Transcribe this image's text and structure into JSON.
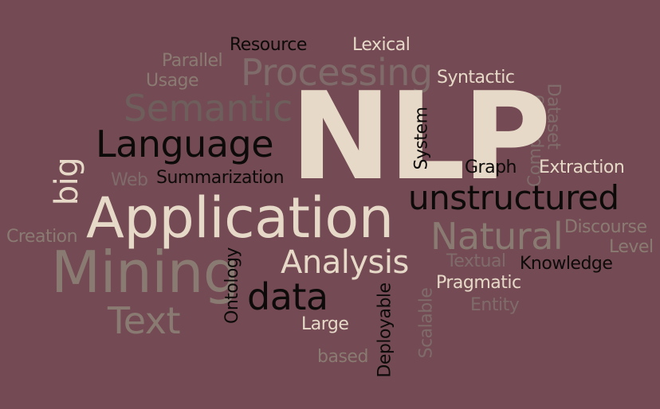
{
  "background": "#744b54",
  "words": {
    "nlp": "NLP",
    "application": "Application",
    "mining": "Mining",
    "language": "Language",
    "processing": "Processing",
    "semantic": "Semantic",
    "unstructured": "unstructured",
    "natural": "Natural",
    "analysis": "Analysis",
    "text": "Text",
    "data": "data",
    "big": "big",
    "resource": "Resource",
    "lexical": "Lexical",
    "parallel": "Parallel",
    "usage": "Usage",
    "syntactic": "Syntactic",
    "summarization": "Summarization",
    "web": "Web",
    "system": "System",
    "graph": "Graph",
    "extraction": "Extraction",
    "computing": "Computing",
    "dataset": "Dataset",
    "creation": "Creation",
    "discourse": "Discourse",
    "level": "Level",
    "textual": "Textual",
    "knowledge": "Knowledge",
    "pragmatic": "Pragmatic",
    "entity": "Entity",
    "ontology": "Ontology",
    "large": "Large",
    "based": "based",
    "deployable": "Deployable",
    "scalable": "Scalable"
  }
}
